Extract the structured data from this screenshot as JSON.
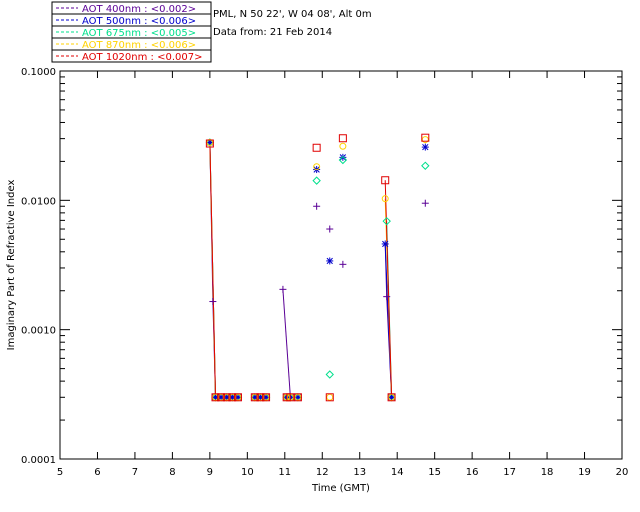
{
  "legend": [
    {
      "label": "AOT  400nm : <0.002>",
      "color": "#5a0096"
    },
    {
      "label": "AOT  500nm : <0.006>",
      "color": "#0000cc"
    },
    {
      "label": "AOT  675nm : <0.005>",
      "color": "#00e08c"
    },
    {
      "label": "AOT  870nm : <0.006>",
      "color": "#ffd200"
    },
    {
      "label": "AOT 1020nm : <0.007>",
      "color": "#e00000"
    }
  ],
  "info": {
    "site": "PML, N 50 22', W 04 08', Alt 0m",
    "date": "Data from: 21 Feb 2014"
  },
  "chart_data": {
    "type": "scatter",
    "xlabel": "Time (GMT)",
    "ylabel": "Imaginary Part of Refractive Index",
    "xlim": [
      5,
      20
    ],
    "ylim": [
      0.0001,
      0.1
    ],
    "yscale": "log",
    "x_ticks": [
      "5",
      "6",
      "7",
      "8",
      "9",
      "10",
      "11",
      "12",
      "13",
      "14",
      "15",
      "16",
      "17",
      "18",
      "19",
      "20"
    ],
    "y_ticks": [
      "0.0001",
      "0.0010",
      "0.0100",
      "0.1000"
    ],
    "series": [
      {
        "name": "AOT  400nm : <0.002>",
        "color": "#5a0096",
        "marker": "plus",
        "points": [
          [
            9.0,
            0.028
          ],
          [
            9.08,
            0.00165
          ],
          [
            9.15,
            0.0003
          ],
          [
            9.3,
            0.0003
          ],
          [
            9.45,
            0.0003
          ],
          [
            9.6,
            0.0003
          ],
          [
            9.75,
            0.0003
          ],
          [
            10.2,
            0.0003
          ],
          [
            10.35,
            0.0003
          ],
          [
            10.5,
            0.0003
          ],
          [
            10.95,
            0.00205
          ],
          [
            11.05,
            0.0003
          ],
          [
            11.15,
            0.0003
          ],
          [
            11.35,
            0.0003
          ],
          [
            11.85,
            0.009
          ],
          [
            12.2,
            0.006
          ],
          [
            12.55,
            0.0032
          ],
          [
            13.72,
            0.0018
          ],
          [
            13.85,
            0.0003
          ],
          [
            14.75,
            0.0095
          ]
        ],
        "lines": [
          [
            [
              9.0,
              0.028
            ],
            [
              9.08,
              0.00165
            ],
            [
              9.15,
              0.0003
            ]
          ],
          [
            [
              10.95,
              0.00205
            ],
            [
              11.15,
              0.0003
            ]
          ],
          [
            [
              13.68,
              0.0046
            ],
            [
              13.72,
              0.0018
            ],
            [
              13.85,
              0.0003
            ]
          ]
        ]
      },
      {
        "name": "AOT  500nm : <0.006>",
        "color": "#0000cc",
        "marker": "star",
        "points": [
          [
            9.0,
            0.028
          ],
          [
            9.15,
            0.0003
          ],
          [
            9.3,
            0.0003
          ],
          [
            9.45,
            0.0003
          ],
          [
            9.6,
            0.0003
          ],
          [
            9.75,
            0.0003
          ],
          [
            10.2,
            0.0003
          ],
          [
            10.35,
            0.0003
          ],
          [
            10.5,
            0.0003
          ],
          [
            11.05,
            0.0003
          ],
          [
            11.15,
            0.0003
          ],
          [
            11.35,
            0.0003
          ],
          [
            11.85,
            0.0173
          ],
          [
            12.2,
            0.0034
          ],
          [
            12.55,
            0.0215
          ],
          [
            13.68,
            0.0046
          ],
          [
            13.85,
            0.0003
          ],
          [
            14.75,
            0.0258
          ]
        ],
        "lines": [
          [
            [
              9.0,
              0.028
            ],
            [
              9.15,
              0.0003
            ]
          ],
          [
            [
              13.68,
              0.0046
            ],
            [
              13.85,
              0.0003
            ]
          ]
        ]
      },
      {
        "name": "AOT  675nm : <0.005>",
        "color": "#00e08c",
        "marker": "diamond",
        "points": [
          [
            9.0,
            0.028
          ],
          [
            9.15,
            0.0003
          ],
          [
            9.3,
            0.0003
          ],
          [
            9.45,
            0.0003
          ],
          [
            9.6,
            0.0003
          ],
          [
            9.75,
            0.0003
          ],
          [
            10.2,
            0.0003
          ],
          [
            10.35,
            0.0003
          ],
          [
            10.5,
            0.0003
          ],
          [
            11.05,
            0.0003
          ],
          [
            11.15,
            0.0003
          ],
          [
            11.35,
            0.0003
          ],
          [
            11.85,
            0.0142
          ],
          [
            12.2,
            0.00045
          ],
          [
            12.55,
            0.0205
          ],
          [
            13.72,
            0.0069
          ],
          [
            13.85,
            0.0003
          ],
          [
            14.75,
            0.0185
          ]
        ],
        "lines": [
          [
            [
              9.0,
              0.028
            ],
            [
              9.15,
              0.0003
            ]
          ],
          [
            [
              13.72,
              0.0069
            ],
            [
              13.85,
              0.0003
            ]
          ]
        ]
      },
      {
        "name": "AOT  870nm : <0.006>",
        "color": "#ffd200",
        "marker": "circle",
        "points": [
          [
            9.0,
            0.028
          ],
          [
            9.15,
            0.0003
          ],
          [
            9.3,
            0.0003
          ],
          [
            9.45,
            0.0003
          ],
          [
            9.6,
            0.0003
          ],
          [
            9.75,
            0.0003
          ],
          [
            10.2,
            0.0003
          ],
          [
            10.35,
            0.0003
          ],
          [
            10.5,
            0.0003
          ],
          [
            11.05,
            0.0003
          ],
          [
            11.15,
            0.0003
          ],
          [
            11.35,
            0.0003
          ],
          [
            11.85,
            0.0182
          ],
          [
            12.2,
            0.0003
          ],
          [
            12.55,
            0.0262
          ],
          [
            13.68,
            0.0103
          ],
          [
            13.85,
            0.0003
          ],
          [
            14.75,
            0.0295
          ]
        ],
        "lines": [
          [
            [
              9.0,
              0.028
            ],
            [
              9.15,
              0.0003
            ]
          ],
          [
            [
              13.68,
              0.0103
            ],
            [
              13.85,
              0.0003
            ]
          ]
        ]
      },
      {
        "name": "AOT 1020nm : <0.007>",
        "color": "#e00000",
        "marker": "square",
        "points": [
          [
            9.0,
            0.0275
          ],
          [
            9.15,
            0.0003
          ],
          [
            9.3,
            0.0003
          ],
          [
            9.45,
            0.0003
          ],
          [
            9.6,
            0.0003
          ],
          [
            9.75,
            0.0003
          ],
          [
            10.2,
            0.0003
          ],
          [
            10.35,
            0.0003
          ],
          [
            10.5,
            0.0003
          ],
          [
            11.05,
            0.0003
          ],
          [
            11.15,
            0.0003
          ],
          [
            11.35,
            0.0003
          ],
          [
            11.85,
            0.0255
          ],
          [
            12.2,
            0.0003
          ],
          [
            12.55,
            0.0302
          ],
          [
            13.68,
            0.0143
          ],
          [
            13.85,
            0.0003
          ],
          [
            14.75,
            0.0305
          ]
        ],
        "lines": [
          [
            [
              9.0,
              0.0275
            ],
            [
              9.15,
              0.0003
            ]
          ],
          [
            [
              13.68,
              0.0143
            ],
            [
              13.85,
              0.0003
            ]
          ]
        ]
      }
    ]
  }
}
